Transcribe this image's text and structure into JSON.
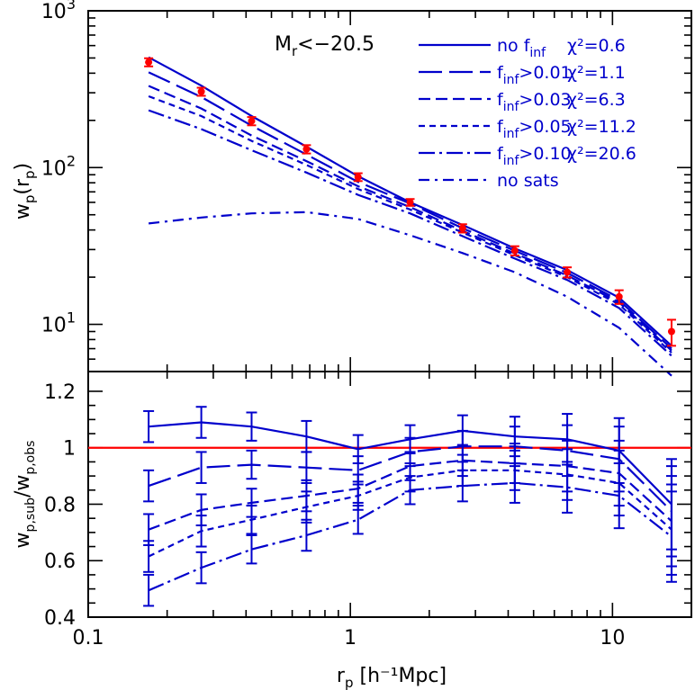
{
  "chart_data": [
    {
      "type": "line",
      "panel": "top",
      "xscale": "log",
      "yscale": "log",
      "xlim": [
        0.1,
        20
      ],
      "ylim": [
        5,
        1000
      ],
      "ylabel": "w_p(r_p)",
      "yticks": [
        10,
        100,
        1000
      ],
      "ytick_labels": [
        "10^1",
        "10^2",
        "10^3"
      ],
      "annotation": "M_r<−20.5",
      "x": [
        0.17,
        0.27,
        0.42,
        0.68,
        1.07,
        1.69,
        2.68,
        4.24,
        6.72,
        10.6,
        16.8
      ],
      "observed": {
        "values": [
          470,
          305,
          198,
          131,
          87,
          60,
          41,
          29.5,
          21.5,
          15,
          9
        ],
        "err": [
          28,
          18,
          12,
          8,
          5,
          3,
          2.5,
          2,
          1.6,
          1.5,
          1.7
        ],
        "color": "#ff0000"
      },
      "series": [
        {
          "name": "no f_inf",
          "chi2": "χ²=0.6",
          "dash": "solid",
          "values": [
            505,
            333,
            213,
            136,
            88,
            60,
            43,
            30.5,
            22.2,
            14.8,
            7.3
          ]
        },
        {
          "name": "f_inf>0.01",
          "chi2": "χ²=1.1",
          "dash": "long",
          "values": [
            405,
            282,
            185,
            121,
            81,
            59,
            41,
            29.5,
            21.3,
            14.2,
            7.0
          ]
        },
        {
          "name": "f_inf>0.03",
          "chi2": "χ²=6.3",
          "dash": "medium",
          "values": [
            332,
            238,
            160,
            110,
            76,
            56,
            39.5,
            28.3,
            20.5,
            13.8,
            6.8
          ]
        },
        {
          "name": "f_inf>0.05",
          "chi2": "χ²=11.2",
          "dash": "short",
          "values": [
            285,
            213,
            148,
            104,
            73,
            54,
            38.5,
            27.6,
            20,
            13.4,
            6.6
          ]
        },
        {
          "name": "f_inf>0.10",
          "chi2": "χ²=20.6",
          "dash": "dotdash",
          "values": [
            232,
            176,
            129,
            93,
            67,
            51,
            36.5,
            26.3,
            19.2,
            12.7,
            6.3
          ]
        },
        {
          "name": "no sats",
          "chi2": "",
          "dash": "sparse",
          "values": [
            44,
            48,
            51,
            52,
            47,
            37,
            28.5,
            21.5,
            15,
            9.5,
            4.7
          ]
        }
      ],
      "line_color": "#0000cc"
    },
    {
      "type": "line",
      "panel": "bottom",
      "xscale": "log",
      "xlim": [
        0.1,
        20
      ],
      "ylim": [
        0.4,
        1.27
      ],
      "xlabel": "r_p [h⁻¹Mpc]",
      "ylabel": "w_p,sub/w_p,obs",
      "xticks": [
        0.1,
        1,
        10
      ],
      "xtick_labels": [
        "0.1",
        "1",
        "10"
      ],
      "yticks": [
        0.4,
        0.6,
        0.8,
        1,
        1.2
      ],
      "ytick_labels": [
        "0.4",
        "0.6",
        "0.8",
        "1",
        "1.2"
      ],
      "reference_line": {
        "y": 1.0,
        "color": "#ff0000"
      },
      "x": [
        0.17,
        0.27,
        0.42,
        0.68,
        1.07,
        1.69,
        2.68,
        4.24,
        6.72,
        10.6,
        16.8
      ],
      "series": [
        {
          "name": "no f_inf",
          "dash": "solid",
          "values": [
            1.075,
            1.09,
            1.075,
            1.04,
            0.995,
            1.03,
            1.06,
            1.04,
            1.03,
            0.99,
            0.8
          ],
          "err": [
            0.055,
            0.055,
            0.05,
            0.055,
            0.05,
            0.05,
            0.055,
            0.07,
            0.09,
            0.115,
            0.16
          ]
        },
        {
          "name": "f_inf>0.01",
          "dash": "long",
          "values": [
            0.865,
            0.93,
            0.94,
            0.93,
            0.92,
            0.985,
            1.005,
            1.005,
            0.99,
            0.96,
            0.775
          ]
        },
        {
          "name": "f_inf>0.03",
          "dash": "medium",
          "values": [
            0.71,
            0.78,
            0.805,
            0.83,
            0.855,
            0.935,
            0.955,
            0.945,
            0.935,
            0.91,
            0.74
          ]
        },
        {
          "name": "f_inf>0.05",
          "dash": "short",
          "values": [
            0.615,
            0.705,
            0.745,
            0.79,
            0.83,
            0.895,
            0.92,
            0.92,
            0.905,
            0.875,
            0.71
          ]
        },
        {
          "name": "f_inf>0.10",
          "dash": "dotdash",
          "values": [
            0.495,
            0.575,
            0.64,
            0.69,
            0.745,
            0.85,
            0.865,
            0.875,
            0.86,
            0.83,
            0.685
          ]
        }
      ],
      "line_color": "#0000cc"
    }
  ]
}
